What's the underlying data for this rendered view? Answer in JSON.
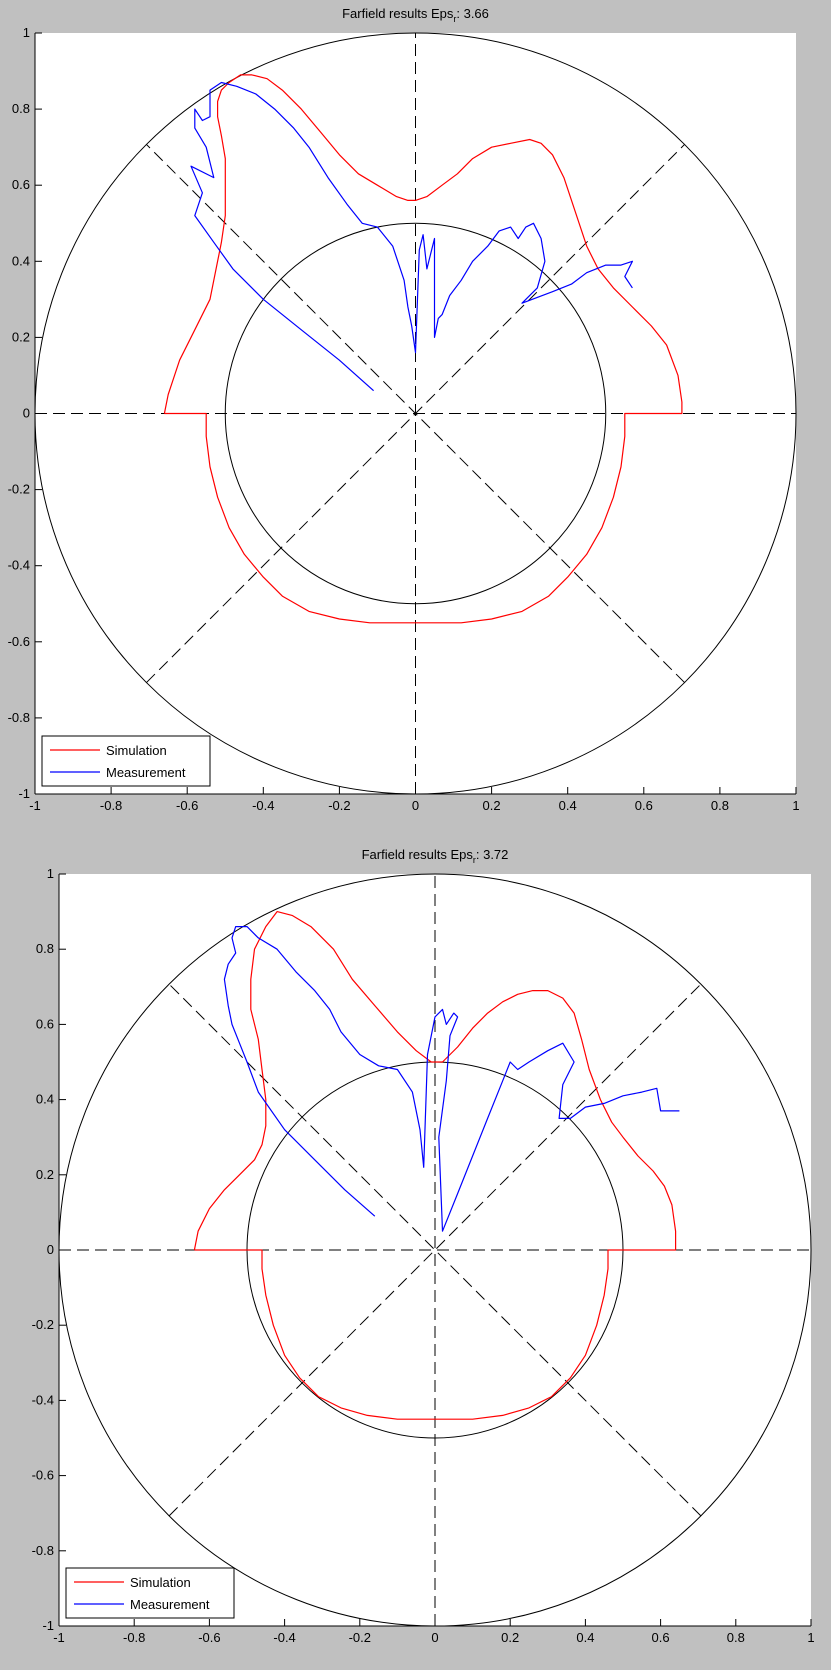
{
  "figure_background": "#c0c0c0",
  "chart_data": [
    {
      "type": "line",
      "title": {
        "prefix": "Farfield results Eps",
        "subscript": "r",
        "suffix": ": 3.66"
      },
      "xlim": [
        -1,
        1
      ],
      "ylim": [
        -1,
        1
      ],
      "x_ticks": [
        "-1",
        "-0.8",
        "-0.6",
        "-0.4",
        "-0.2",
        "0",
        "0.2",
        "0.4",
        "0.6",
        "0.8",
        "1"
      ],
      "y_ticks": [
        "1",
        "0.8",
        "0.6",
        "0.4",
        "0.2",
        "0",
        "-0.2",
        "-0.4",
        "-0.6",
        "-0.8",
        "-1"
      ],
      "polar_grid": {
        "circles": [
          0.5,
          1.0
        ],
        "spokes_deg": [
          0,
          45,
          90,
          135
        ]
      },
      "legend": {
        "placement": "bottom-left",
        "entries": [
          "Simulation",
          "Measurement"
        ]
      },
      "series": [
        {
          "name": "Simulation",
          "color": "#ff0000",
          "x": [
            -0.66,
            -0.65,
            -0.62,
            -0.58,
            -0.54,
            -0.52,
            -0.51,
            -0.5,
            -0.5,
            -0.5,
            -0.51,
            -0.52,
            -0.52,
            -0.51,
            -0.49,
            -0.46,
            -0.43,
            -0.39,
            -0.35,
            -0.3,
            -0.25,
            -0.2,
            -0.15,
            -0.1,
            -0.05,
            -0.02,
            0.0,
            0.03,
            0.07,
            0.11,
            0.15,
            0.2,
            0.25,
            0.3,
            0.33,
            0.36,
            0.39,
            0.42,
            0.45,
            0.48,
            0.52,
            0.57,
            0.62,
            0.66,
            0.69,
            0.7,
            0.7,
            0.55,
            0.55,
            0.54,
            0.52,
            0.49,
            0.45,
            0.4,
            0.35,
            0.28,
            0.2,
            0.12,
            0.05,
            0.0,
            -0.05,
            -0.12,
            -0.2,
            -0.28,
            -0.35,
            -0.4,
            -0.45,
            -0.49,
            -0.52,
            -0.54,
            -0.55,
            -0.55,
            -0.66
          ],
          "y": [
            0.0,
            0.05,
            0.14,
            0.22,
            0.3,
            0.4,
            0.45,
            0.52,
            0.6,
            0.67,
            0.73,
            0.78,
            0.82,
            0.85,
            0.87,
            0.89,
            0.89,
            0.88,
            0.85,
            0.8,
            0.74,
            0.68,
            0.63,
            0.6,
            0.57,
            0.56,
            0.56,
            0.57,
            0.6,
            0.63,
            0.67,
            0.7,
            0.71,
            0.72,
            0.71,
            0.68,
            0.62,
            0.53,
            0.44,
            0.38,
            0.33,
            0.28,
            0.23,
            0.18,
            0.1,
            0.03,
            0.0,
            0.0,
            -0.06,
            -0.14,
            -0.22,
            -0.3,
            -0.37,
            -0.43,
            -0.48,
            -0.52,
            -0.54,
            -0.55,
            -0.55,
            -0.55,
            -0.55,
            -0.55,
            -0.54,
            -0.52,
            -0.48,
            -0.43,
            -0.37,
            -0.3,
            -0.22,
            -0.14,
            -0.06,
            0.0,
            0.0
          ]
        },
        {
          "name": "Measurement",
          "color": "#0000ff",
          "x": [
            -0.11,
            -0.2,
            -0.3,
            -0.4,
            -0.48,
            -0.53,
            -0.58,
            -0.56,
            -0.59,
            -0.53,
            -0.55,
            -0.58,
            -0.58,
            -0.56,
            -0.54,
            -0.54,
            -0.51,
            -0.47,
            -0.42,
            -0.37,
            -0.32,
            -0.28,
            -0.23,
            -0.18,
            -0.14,
            -0.1,
            -0.06,
            -0.03,
            -0.02,
            -0.01,
            0.0,
            0.01,
            0.02,
            0.03,
            0.04,
            0.05,
            0.05,
            0.06,
            0.07,
            0.09,
            0.12,
            0.15,
            0.19,
            0.22,
            0.25,
            0.27,
            0.29,
            0.31,
            0.33,
            0.34,
            0.32,
            0.28,
            0.36,
            0.41,
            0.45,
            0.5,
            0.54,
            0.57,
            0.55,
            0.57
          ],
          "y": [
            0.06,
            0.14,
            0.22,
            0.3,
            0.38,
            0.45,
            0.52,
            0.58,
            0.65,
            0.62,
            0.7,
            0.75,
            0.8,
            0.77,
            0.78,
            0.85,
            0.87,
            0.86,
            0.84,
            0.8,
            0.75,
            0.7,
            0.62,
            0.55,
            0.5,
            0.49,
            0.44,
            0.35,
            0.28,
            0.23,
            0.16,
            0.43,
            0.47,
            0.38,
            0.42,
            0.46,
            0.2,
            0.25,
            0.26,
            0.31,
            0.35,
            0.4,
            0.44,
            0.48,
            0.49,
            0.46,
            0.49,
            0.5,
            0.46,
            0.4,
            0.33,
            0.29,
            0.32,
            0.34,
            0.37,
            0.39,
            0.39,
            0.4,
            0.36,
            0.33
          ]
        }
      ]
    },
    {
      "type": "line",
      "title": {
        "prefix": "Farfield results Eps",
        "subscript": "r",
        "suffix": ": 3.72"
      },
      "xlim": [
        -1,
        1
      ],
      "ylim": [
        -1,
        1
      ],
      "x_ticks": [
        "-1",
        "-0.8",
        "-0.6",
        "-0.4",
        "-0.2",
        "0",
        "0.2",
        "0.4",
        "0.6",
        "0.8",
        "1"
      ],
      "y_ticks": [
        "1",
        "0.8",
        "0.6",
        "0.4",
        "0.2",
        "0",
        "-0.2",
        "-0.4",
        "-0.6",
        "-0.8",
        "-1"
      ],
      "polar_grid": {
        "circles": [
          0.5,
          1.0
        ],
        "spokes_deg": [
          0,
          45,
          90,
          135
        ]
      },
      "legend": {
        "placement": "bottom-left",
        "entries": [
          "Simulation",
          "Measurement"
        ]
      },
      "series": [
        {
          "name": "Simulation",
          "color": "#ff0000",
          "x": [
            -0.64,
            -0.63,
            -0.6,
            -0.56,
            -0.52,
            -0.48,
            -0.46,
            -0.45,
            -0.45,
            -0.46,
            -0.47,
            -0.49,
            -0.49,
            -0.48,
            -0.45,
            -0.42,
            -0.38,
            -0.33,
            -0.27,
            -0.22,
            -0.16,
            -0.1,
            -0.05,
            -0.01,
            0.02,
            0.06,
            0.1,
            0.14,
            0.18,
            0.22,
            0.26,
            0.3,
            0.34,
            0.37,
            0.39,
            0.41,
            0.44,
            0.47,
            0.5,
            0.54,
            0.58,
            0.61,
            0.63,
            0.64,
            0.64,
            0.46,
            0.46,
            0.45,
            0.43,
            0.4,
            0.36,
            0.31,
            0.25,
            0.18,
            0.1,
            0.03,
            0.0,
            -0.03,
            -0.1,
            -0.18,
            -0.25,
            -0.31,
            -0.36,
            -0.4,
            -0.43,
            -0.45,
            -0.46,
            -0.46,
            -0.64
          ],
          "y": [
            0.0,
            0.05,
            0.11,
            0.16,
            0.2,
            0.24,
            0.28,
            0.33,
            0.4,
            0.48,
            0.56,
            0.64,
            0.72,
            0.8,
            0.86,
            0.9,
            0.89,
            0.86,
            0.8,
            0.72,
            0.65,
            0.58,
            0.53,
            0.5,
            0.5,
            0.54,
            0.59,
            0.63,
            0.66,
            0.68,
            0.69,
            0.69,
            0.67,
            0.63,
            0.56,
            0.48,
            0.4,
            0.34,
            0.3,
            0.25,
            0.21,
            0.17,
            0.12,
            0.05,
            0.0,
            0.0,
            -0.05,
            -0.12,
            -0.2,
            -0.28,
            -0.34,
            -0.39,
            -0.42,
            -0.44,
            -0.45,
            -0.45,
            -0.45,
            -0.45,
            -0.45,
            -0.44,
            -0.42,
            -0.39,
            -0.34,
            -0.28,
            -0.2,
            -0.12,
            -0.05,
            0.0,
            0.0
          ]
        },
        {
          "name": "Measurement",
          "color": "#0000ff",
          "x": [
            -0.16,
            -0.24,
            -0.32,
            -0.4,
            -0.47,
            -0.5,
            -0.52,
            -0.54,
            -0.55,
            -0.56,
            -0.55,
            -0.53,
            -0.54,
            -0.53,
            -0.5,
            -0.47,
            -0.42,
            -0.37,
            -0.32,
            -0.28,
            -0.25,
            -0.2,
            -0.15,
            -0.1,
            -0.06,
            -0.04,
            -0.03,
            -0.02,
            0.0,
            0.02,
            0.03,
            0.05,
            0.06,
            0.04,
            0.03,
            0.01,
            0.02,
            0.06,
            0.1,
            0.14,
            0.18,
            0.2,
            0.22,
            0.25,
            0.3,
            0.34,
            0.37,
            0.34,
            0.33,
            0.36,
            0.4,
            0.45,
            0.5,
            0.55,
            0.59,
            0.6,
            0.63,
            0.65
          ],
          "y": [
            0.09,
            0.16,
            0.24,
            0.32,
            0.42,
            0.5,
            0.55,
            0.6,
            0.65,
            0.72,
            0.76,
            0.79,
            0.83,
            0.86,
            0.86,
            0.83,
            0.8,
            0.74,
            0.69,
            0.64,
            0.58,
            0.52,
            0.49,
            0.48,
            0.42,
            0.32,
            0.22,
            0.52,
            0.62,
            0.64,
            0.6,
            0.63,
            0.62,
            0.57,
            0.45,
            0.3,
            0.05,
            0.15,
            0.25,
            0.35,
            0.45,
            0.5,
            0.48,
            0.5,
            0.53,
            0.55,
            0.5,
            0.44,
            0.35,
            0.35,
            0.38,
            0.39,
            0.41,
            0.42,
            0.43,
            0.37,
            0.37,
            0.37
          ]
        }
      ]
    }
  ]
}
